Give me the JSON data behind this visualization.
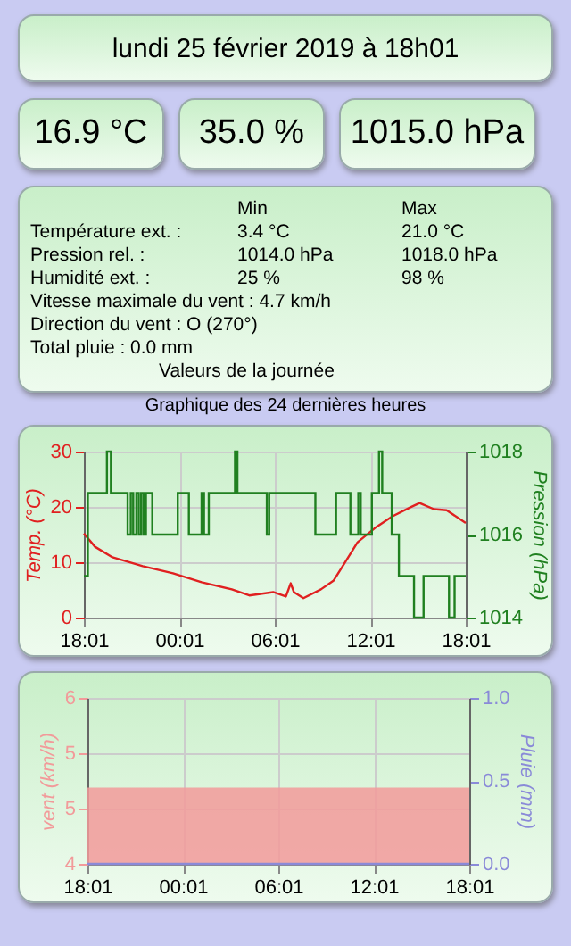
{
  "chart_data": [
    {
      "type": "other",
      "title": "lundi 25 février 2019 à 18h01",
      "annotations": [
        "16.9 °C",
        "35.0 %",
        "1015.0 hPa",
        "Min",
        "Max",
        "Température ext. :",
        "3.4 °C",
        "21.0 °C",
        "Pression rel. :",
        "1014.0 hPa",
        "1018.0 hPa",
        "Humidité ext. :",
        "25 %",
        "98 %",
        "Vitesse maximale du vent : 4.7 km/h",
        "Direction du vent : O (270°)",
        "Total pluie : 0.0 mm",
        "Valeurs de la journée"
      ]
    },
    {
      "type": "line",
      "title": "Graphique des 24 dernières heures",
      "ylabel": "Temp. (°C)",
      "y2label": "Pression (hPa)",
      "xlim": [
        "2019-02-24T18:01",
        "2019-02-25T18:01"
      ],
      "xticks": [
        {
          "value": "2019-02-24T18:01",
          "label": "18:01"
        },
        {
          "value": "2019-02-25T00:01",
          "label": "00:01"
        },
        {
          "value": "2019-02-25T06:01",
          "label": "06:01"
        },
        {
          "value": "2019-02-25T12:01",
          "label": "12:01"
        },
        {
          "value": "2019-02-25T18:01",
          "label": "18:01"
        }
      ],
      "ylim": [
        0,
        30
      ],
      "yticks": [
        0,
        10,
        20,
        30
      ],
      "y2lim": [
        1014,
        1018
      ],
      "y2ticks": [
        1014,
        1016,
        1018
      ],
      "grid": true,
      "series": [
        {
          "color": "#e02020",
          "x": [
            "2019-02-24T18:01",
            "2019-02-24T18:43",
            "2019-02-24T19:49",
            "2019-02-24T21:43",
            "2019-02-24T23:37",
            "2019-02-25T01:25",
            "2019-02-25T03:19",
            "2019-02-25T04:25",
            "2019-02-25T05:55",
            "2019-02-25T06:43",
            "2019-02-25T07:01",
            "2019-02-25T07:13",
            "2019-02-25T07:49",
            "2019-02-25T08:55",
            "2019-02-25T09:43",
            "2019-02-25T10:25",
            "2019-02-25T11:13",
            "2019-02-25T12:19",
            "2019-02-25T13:25",
            "2019-02-25T14:31",
            "2019-02-25T15:07",
            "2019-02-25T16:01",
            "2019-02-25T16:49",
            "2019-02-25T18:01"
          ],
          "values": [
            15.2,
            12.8,
            10.9,
            9.3,
            8.0,
            6.4,
            5.1,
            4.0,
            4.6,
            3.8,
            6.2,
            4.6,
            3.5,
            5.1,
            6.7,
            9.9,
            13.6,
            16.2,
            18.3,
            19.9,
            20.7,
            19.6,
            19.4,
            17.1
          ]
        },
        {
          "type": "step",
          "axis": "y2",
          "color": "#208020",
          "x": [
            "2019-02-24T18:01",
            "2019-02-24T18:16",
            "2019-02-24T19:28",
            "2019-02-24T19:43",
            "2019-02-24T20:46",
            "2019-02-24T20:58",
            "2019-02-24T21:07",
            "2019-02-24T21:19",
            "2019-02-24T21:28",
            "2019-02-24T21:37",
            "2019-02-24T21:46",
            "2019-02-24T21:55",
            "2019-02-24T22:19",
            "2019-02-24T23:55",
            "2019-02-25T00:37",
            "2019-02-25T01:25",
            "2019-02-25T01:34",
            "2019-02-25T01:52",
            "2019-02-25T03:31",
            "2019-02-25T03:40",
            "2019-02-25T05:31",
            "2019-02-25T05:40",
            "2019-02-25T08:34",
            "2019-02-25T09:52",
            "2019-02-25T10:46",
            "2019-02-25T11:16",
            "2019-02-25T11:25",
            "2019-02-25T12:07",
            "2019-02-25T12:34",
            "2019-02-25T12:46",
            "2019-02-25T13:22",
            "2019-02-25T13:49",
            "2019-02-25T14:46",
            "2019-02-25T15:22",
            "2019-02-25T16:58",
            "2019-02-25T17:19",
            "2019-02-25T18:01"
          ],
          "values": [
            1015,
            1017,
            1018,
            1017,
            1016,
            1017,
            1016,
            1017,
            1016,
            1017,
            1016,
            1017,
            1016,
            1017,
            1016,
            1017,
            1016,
            1017,
            1018,
            1017,
            1016,
            1017,
            1016,
            1017,
            1016,
            1017,
            1016,
            1017,
            1018,
            1017,
            1016,
            1015,
            1014,
            1015,
            1014,
            1015,
            1015
          ]
        }
      ]
    },
    {
      "type": "area",
      "ylabel": "vent (km/h)",
      "y2label": "Pluie (mm)",
      "xlim": [
        "2019-02-24T18:01",
        "2019-02-25T18:01"
      ],
      "xticks": [
        {
          "value": "2019-02-24T18:01",
          "label": "18:01"
        },
        {
          "value": "2019-02-25T00:01",
          "label": "00:01"
        },
        {
          "value": "2019-02-25T06:01",
          "label": "06:01"
        },
        {
          "value": "2019-02-25T12:01",
          "label": "12:01"
        },
        {
          "value": "2019-02-25T18:01",
          "label": "18:01"
        }
      ],
      "ylim": [
        4,
        6
      ],
      "yticks": [
        4,
        {
          "value": 4.67,
          "label": "5"
        },
        {
          "value": 5.33,
          "label": "5"
        },
        6
      ],
      "y2lim": [
        0,
        1
      ],
      "y2ticks": [
        {
          "value": 0,
          "label": "0.0"
        },
        {
          "value": 0.5,
          "label": "0.5"
        },
        {
          "value": 1,
          "label": "1.0"
        }
      ],
      "grid": true,
      "series": [
        {
          "color": "#f29a9a",
          "x": [
            "2019-02-24T18:01",
            "2019-02-25T18:01"
          ],
          "values": [
            4.92,
            4.92
          ]
        },
        {
          "type": "line",
          "axis": "y2",
          "color": "#8a8ad8",
          "x": [
            "2019-02-24T18:01",
            "2019-02-25T18:01"
          ],
          "values": [
            0,
            0
          ]
        }
      ]
    }
  ]
}
